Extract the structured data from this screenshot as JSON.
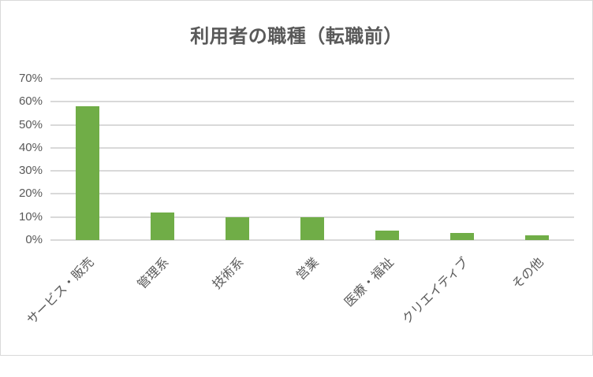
{
  "chart_data": {
    "type": "bar",
    "title": "利用者の職種（転職前）",
    "xlabel": "",
    "ylabel": "",
    "categories": [
      "サービス・販売",
      "管理系",
      "技術系",
      "営業",
      "医療・福祉",
      "クリエイティブ",
      "その他"
    ],
    "values": [
      0.58,
      0.12,
      0.1,
      0.1,
      0.04,
      0.03,
      0.02
    ],
    "ylim": [
      0,
      0.7
    ],
    "yticks": [
      "0%",
      "10%",
      "20%",
      "30%",
      "40%",
      "50%",
      "60%",
      "70%"
    ],
    "grid": true,
    "legend": "none",
    "bar_color": "#70ad47"
  },
  "labels": {
    "title": "利用者の職種（転職前）",
    "yticks": [
      "0%",
      "10%",
      "20%",
      "30%",
      "40%",
      "50%",
      "60%",
      "70%"
    ],
    "categories": [
      "サービス・販売",
      "管理系",
      "技術系",
      "営業",
      "医療・福祉",
      "クリエイティブ",
      "その他"
    ]
  }
}
